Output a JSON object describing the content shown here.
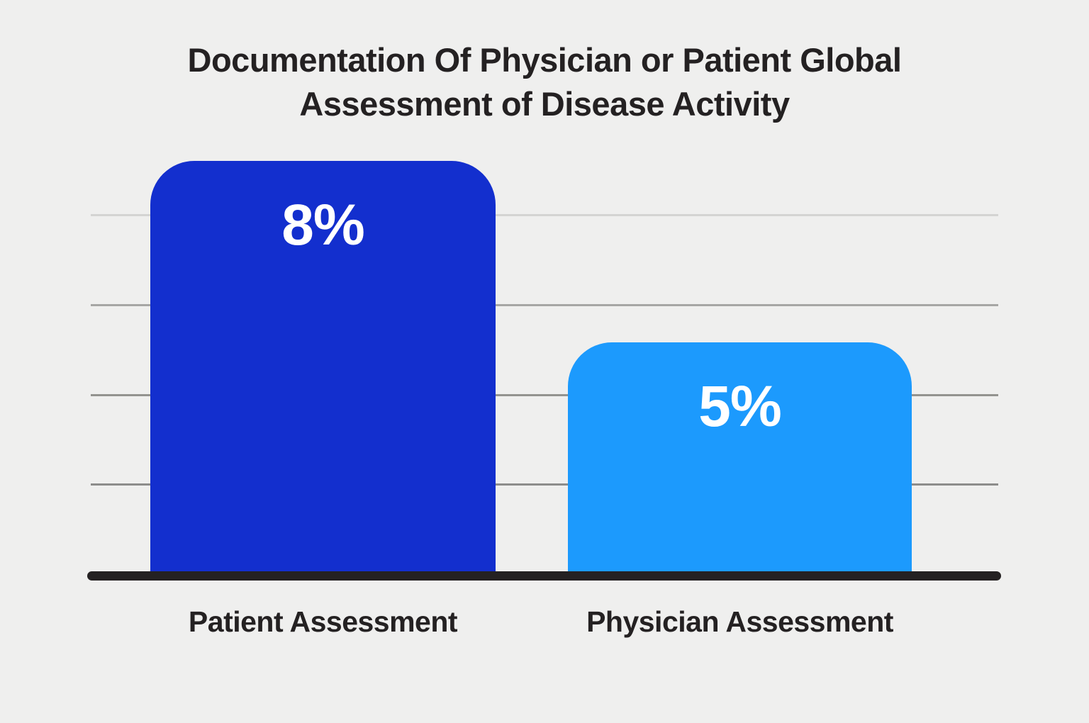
{
  "page": {
    "background_color": "#efefee",
    "text_color": "#242122"
  },
  "chart_data": {
    "type": "bar",
    "title": "Documentation Of Physician or Patient Global Assessment of Disease Activity",
    "title_lines": [
      "Documentation Of Physician or Patient Global",
      "Assessment of Disease Activity"
    ],
    "categories": [
      "Patient Assessment",
      "Physician Assessment"
    ],
    "values": [
      8,
      5
    ],
    "unit": "%",
    "value_labels": [
      "8%",
      "5%"
    ],
    "bar_colors": [
      "#132fce",
      "#1c9afd"
    ],
    "value_label_color": "#ffffff",
    "axis_color": "#242122",
    "grid": true,
    "gridline_colors": [
      "#d4d4d2",
      "#a6a6a4",
      "#93938f",
      "#8d8d8b"
    ],
    "legend_position": "none",
    "xlabel": "",
    "ylabel": ""
  }
}
